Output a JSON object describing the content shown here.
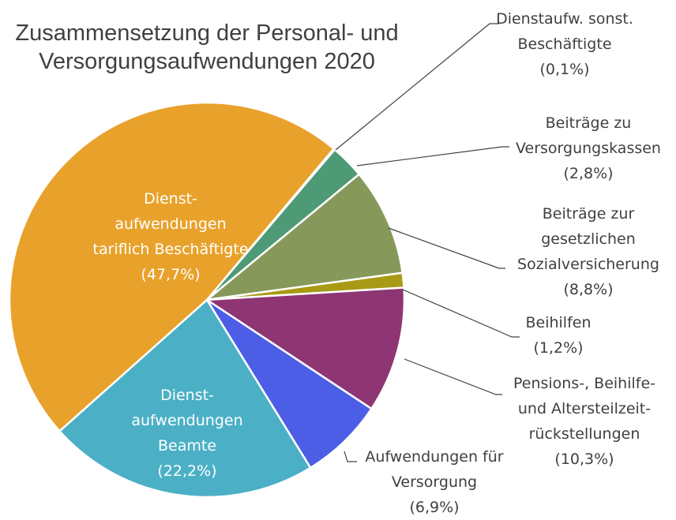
{
  "chart_data": {
    "type": "pie",
    "title": "Zusammensetzung der Personal- und\nVersorgungsaufwendungen 2020",
    "categories": [
      "Dienstaufw. sonst.\nBeschäftigte",
      "Beiträge zu\nVersorgungskassen",
      "Beiträge zur\ngesetzlichen\nSozialversicherung",
      "Beihilfen",
      "Pensions-, Beihilfe-\nund Altersteilzeit-\nrückstellungen",
      "Aufwendungen für\nVersorgung",
      "Dienst-\naufwendungen\nBeamte",
      "Dienst-\naufwendungen\ntariflich Beschäftigte"
    ],
    "values": [
      0.1,
      2.8,
      8.8,
      1.2,
      10.3,
      6.9,
      22.2,
      47.7
    ],
    "value_labels": [
      "(0,1%)",
      "(2,8%)",
      "(8,8%)",
      "(1,2%)",
      "(10,3%)",
      "(6,9%)",
      "(22,2%)",
      "(47,7%)"
    ],
    "colors": [
      "#4e9a77",
      "#4e9a77",
      "#86995a",
      "#a89a14",
      "#8e3574",
      "#4c5ee6",
      "#4bb0c5",
      "#e8a22b"
    ]
  }
}
